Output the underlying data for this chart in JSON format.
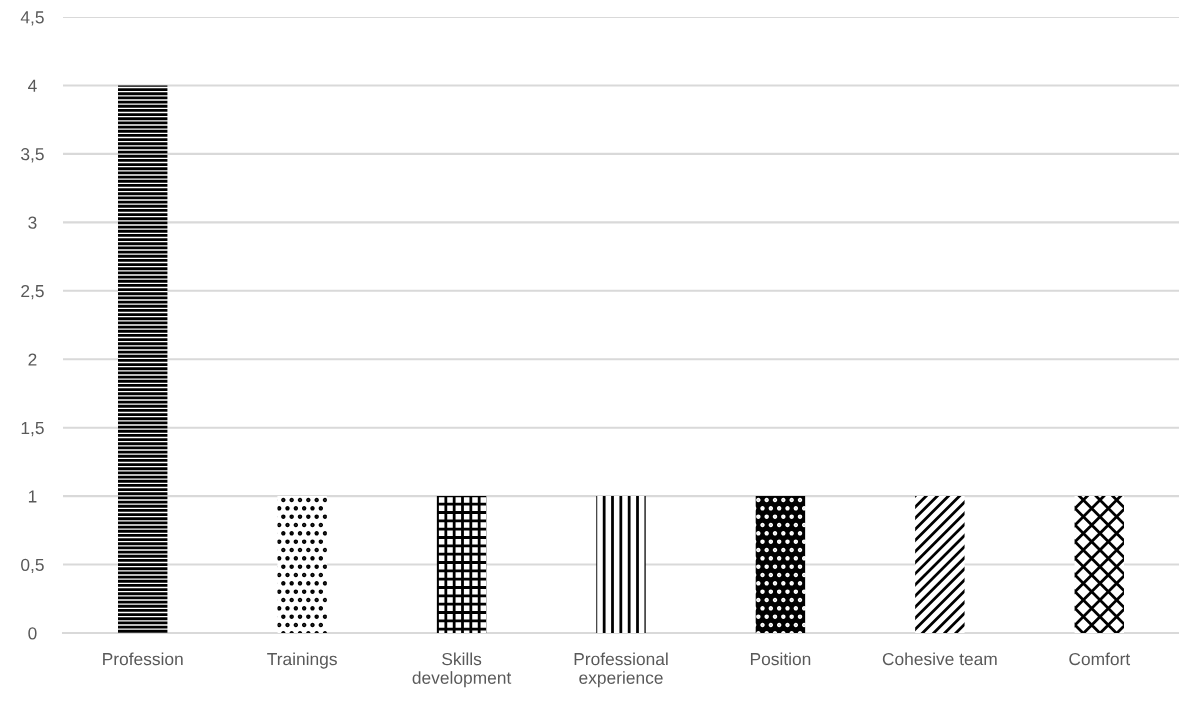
{
  "chart_data": {
    "type": "bar",
    "categories": [
      "Profession",
      "Trainings",
      "Skills\ndevelopment",
      "Professional\nexperience",
      "Position",
      "Cohesive team",
      "Comfort"
    ],
    "values": [
      4,
      1,
      1,
      1,
      1,
      1,
      1
    ],
    "colors": [
      "#000000",
      "#000000",
      "#000000",
      "#000000",
      "#000000",
      "#000000",
      "#000000"
    ],
    "ylim": [
      0,
      4.5
    ],
    "yticks": [
      0,
      {
        "value": 0.5,
        "label": "0,5"
      },
      1,
      {
        "value": 1.5,
        "label": "1,5"
      },
      2,
      {
        "value": 2.5,
        "label": "2,5"
      },
      3,
      {
        "value": 3.5,
        "label": "3,5"
      },
      4,
      {
        "value": 4.5,
        "label": "4,5"
      }
    ],
    "grid": "y",
    "legend": false
  }
}
